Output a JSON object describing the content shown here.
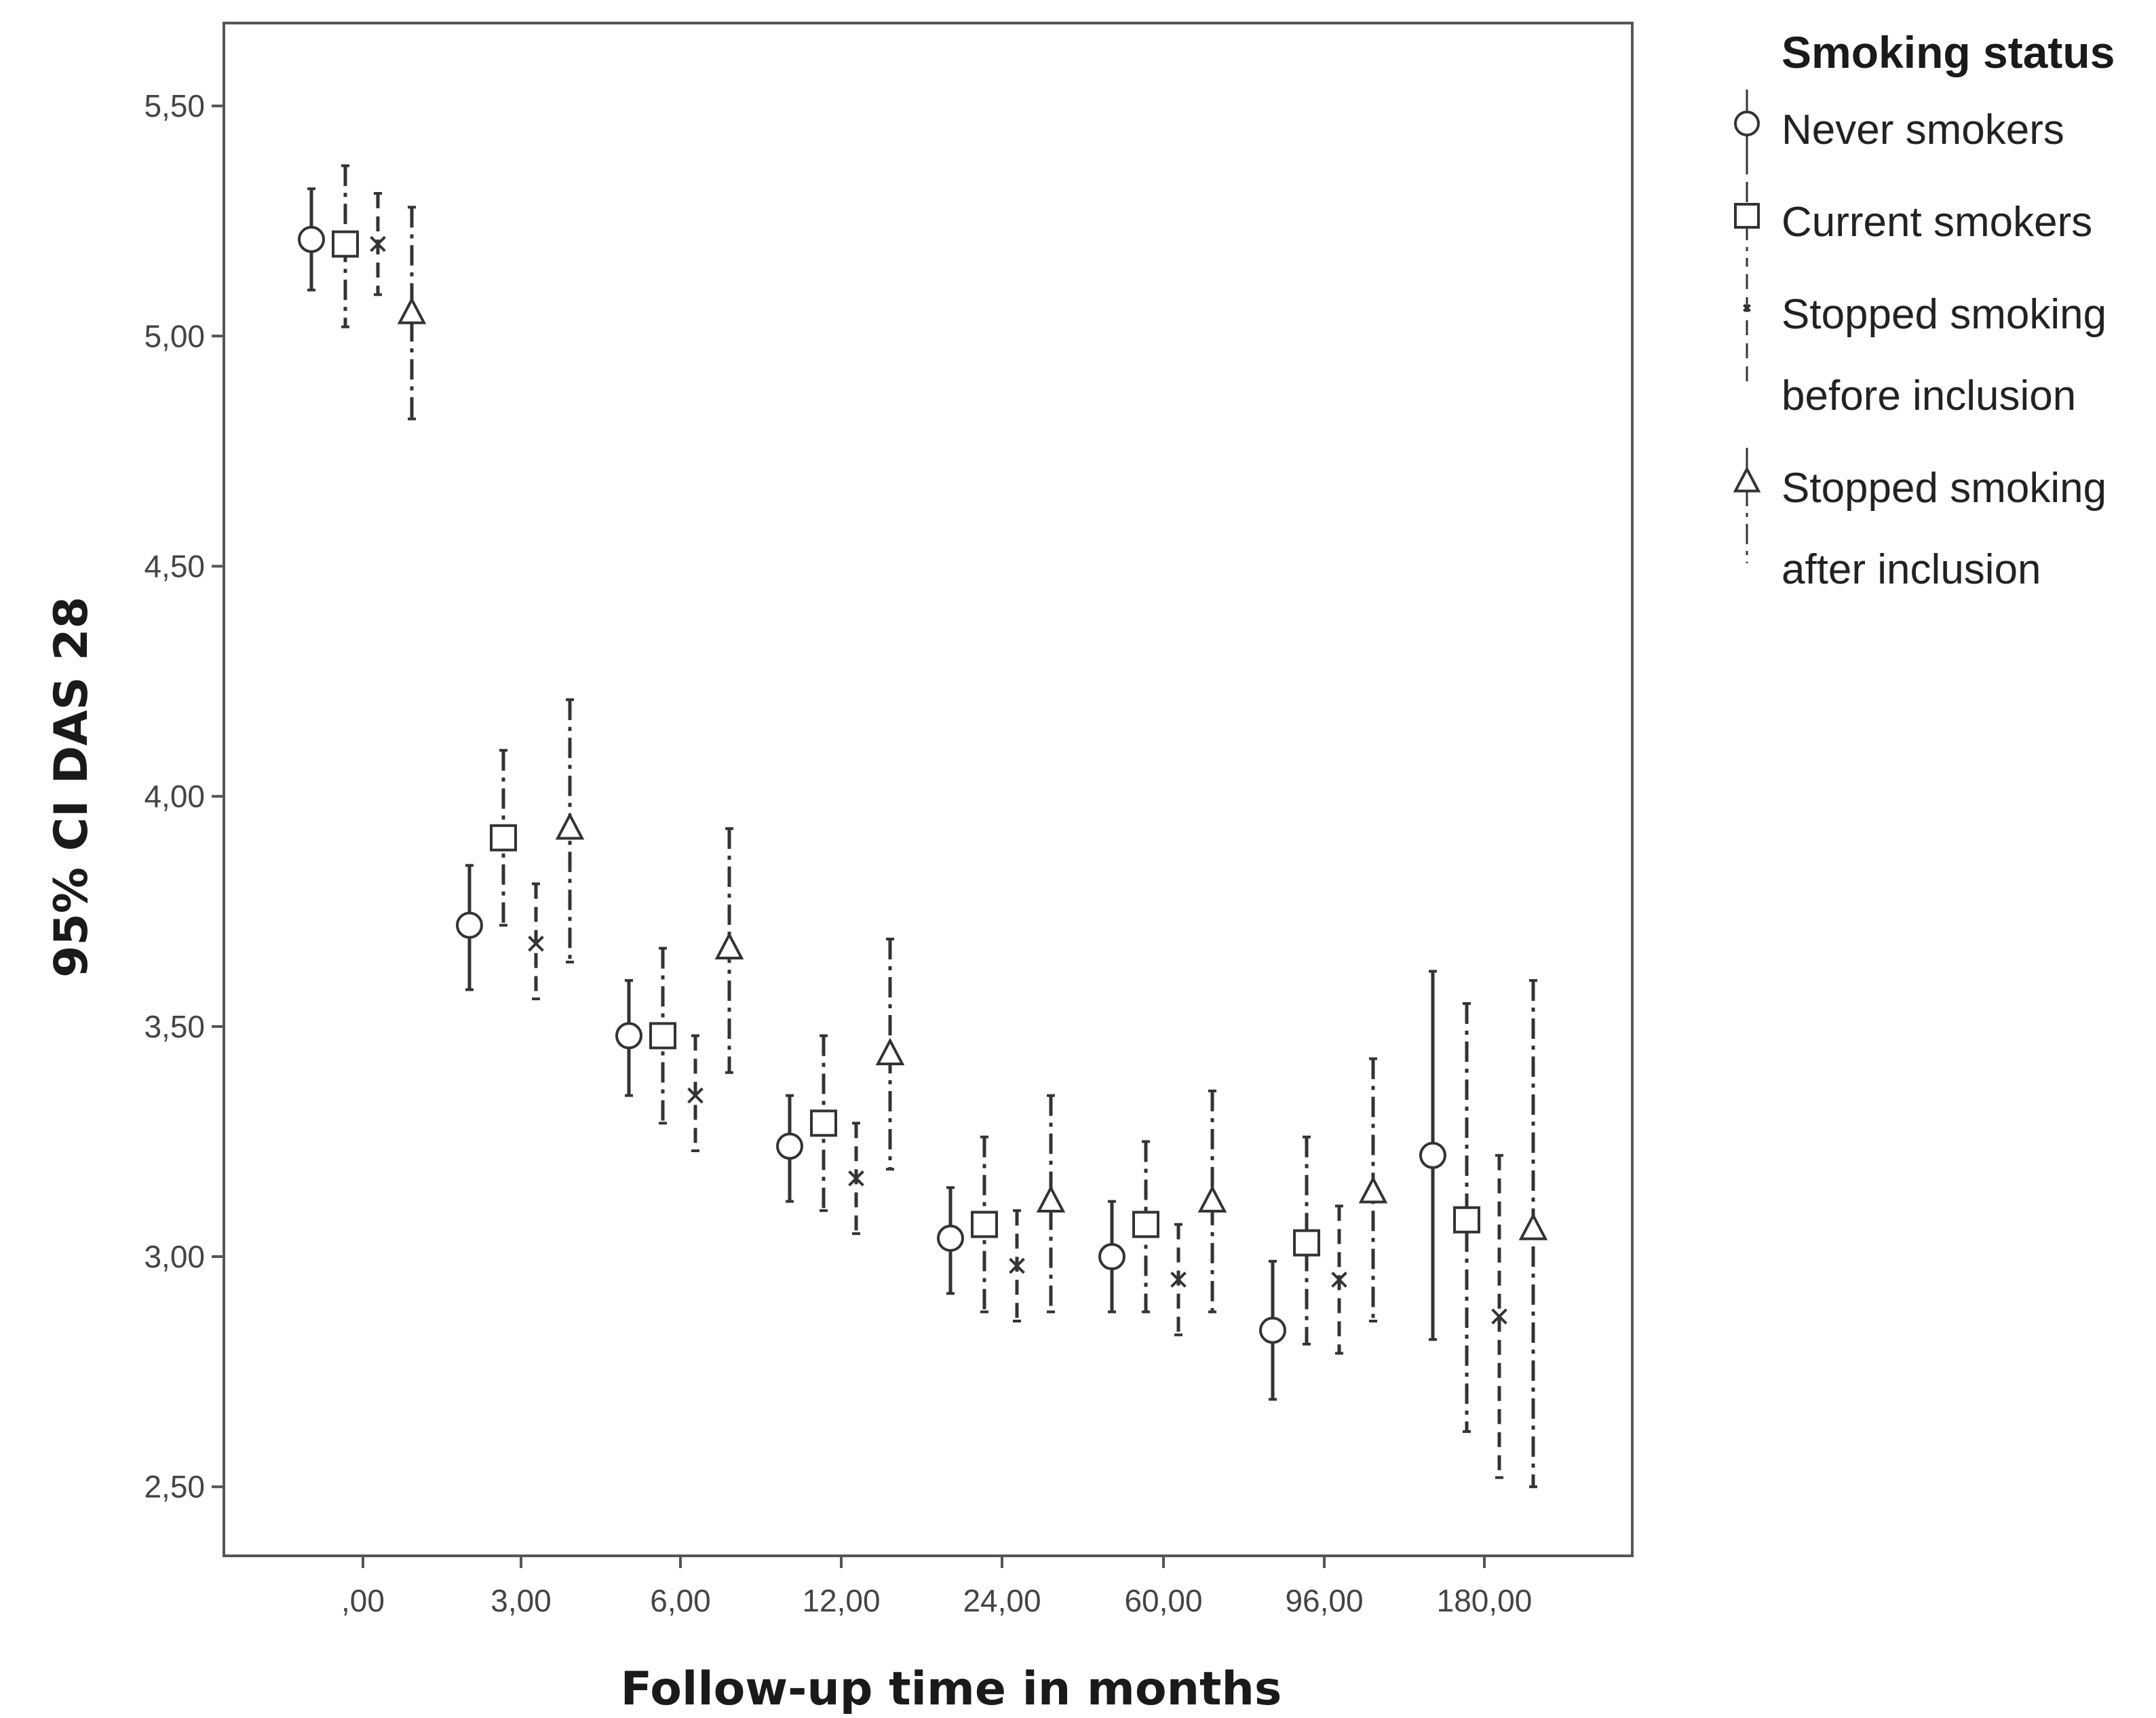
{
  "chart_data": {
    "type": "scatter",
    "subtype": "error-bar",
    "xlabel": "Follow-up time in months",
    "ylabel": "95% CI DAS 28",
    "categories": [
      ",00",
      "3,00",
      "6,00",
      "12,00",
      "24,00",
      "60,00",
      "96,00",
      "180,00"
    ],
    "ylim": [
      2.35,
      5.68
    ],
    "yticks": [
      2.5,
      3.0,
      3.5,
      4.0,
      4.5,
      5.0,
      5.5
    ],
    "ytick_labels": [
      "2,50",
      "3,00",
      "3,50",
      "4,00",
      "4,50",
      "5,00",
      "5,50"
    ],
    "grid": false,
    "legend": {
      "title": "Smoking status",
      "position": "right",
      "entries": [
        {
          "lines": [
            "Never smokers"
          ],
          "marker": "circle"
        },
        {
          "lines": [
            "Current smokers"
          ],
          "marker": "square"
        },
        {
          "lines": [
            "Stopped smoking",
            "before inclusion"
          ],
          "marker": "x"
        },
        {
          "lines": [
            "Stopped smoking",
            "after inclusion"
          ],
          "marker": "triangle"
        }
      ]
    },
    "series": [
      {
        "name": "Never smokers",
        "marker": "circle",
        "line_style": "solid",
        "mean": [
          5.21,
          3.72,
          3.48,
          3.24,
          3.04,
          3.0,
          2.84,
          3.22
        ],
        "lower": [
          5.1,
          3.58,
          3.35,
          3.12,
          2.92,
          2.88,
          2.69,
          2.82
        ],
        "upper": [
          5.32,
          3.85,
          3.6,
          3.35,
          3.15,
          3.12,
          2.99,
          3.62
        ]
      },
      {
        "name": "Current smokers",
        "marker": "square",
        "line_style": "dashdot",
        "mean": [
          5.2,
          3.91,
          3.48,
          3.29,
          3.07,
          3.07,
          3.03,
          3.08
        ],
        "lower": [
          5.02,
          3.72,
          3.29,
          3.1,
          2.88,
          2.88,
          2.81,
          2.62
        ],
        "upper": [
          5.37,
          4.1,
          3.67,
          3.48,
          3.26,
          3.25,
          3.26,
          3.55
        ]
      },
      {
        "name": "Stopped smoking before inclusion",
        "marker": "x",
        "line_style": "dashed",
        "mean": [
          5.2,
          3.68,
          3.35,
          3.17,
          2.98,
          2.95,
          2.95,
          2.87
        ],
        "lower": [
          5.09,
          3.56,
          3.23,
          3.05,
          2.86,
          2.83,
          2.79,
          2.52
        ],
        "upper": [
          5.31,
          3.81,
          3.48,
          3.29,
          3.1,
          3.07,
          3.11,
          3.22
        ]
      },
      {
        "name": "Stopped smoking after inclusion",
        "marker": "triangle",
        "line_style": "dashdot",
        "mean": [
          5.05,
          3.93,
          3.67,
          3.44,
          3.12,
          3.12,
          3.14,
          3.06
        ],
        "lower": [
          4.82,
          3.64,
          3.4,
          3.19,
          2.88,
          2.88,
          2.86,
          2.5
        ],
        "upper": [
          5.28,
          4.21,
          3.93,
          3.69,
          3.35,
          3.36,
          3.43,
          3.6
        ]
      }
    ]
  }
}
